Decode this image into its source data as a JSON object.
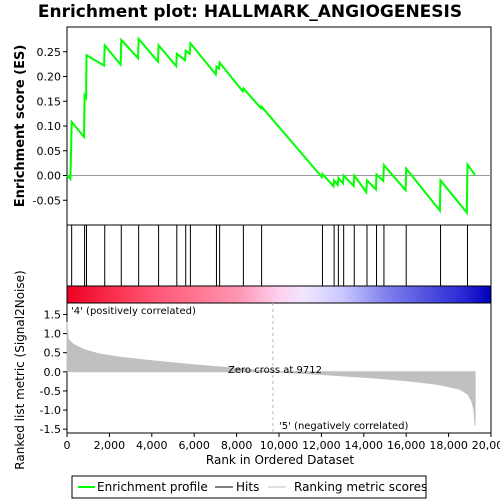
{
  "chart_data": {
    "type": "line",
    "title": "Enrichment plot: HALLMARK_ANGIOGENESIS",
    "ylabel_top": "Enrichment score (ES)",
    "ylabel_bottom": "Ranked list metric (Signal2Noise)",
    "xlabel": "Rank in Ordered Dataset",
    "xlim": [
      0,
      20000
    ],
    "ylim_top": [
      -0.1,
      0.3
    ],
    "ylim_bottom": [
      -1.6,
      1.8
    ],
    "x_ticks": [
      0,
      2000,
      4000,
      6000,
      8000,
      10000,
      12000,
      14000,
      16000,
      18000,
      20000
    ],
    "x_tick_labels": [
      "0",
      "2,000",
      "4,000",
      "6,000",
      "8,000",
      "10,000",
      "12,000",
      "14,000",
      "16,000",
      "18,000",
      "20,000"
    ],
    "y_ticks_top": [
      -0.05,
      0.0,
      0.05,
      0.1,
      0.15,
      0.2,
      0.25
    ],
    "y_tick_labels_top": [
      "-0.05",
      "0.00",
      "0.05",
      "0.10",
      "0.15",
      "0.20",
      "0.25"
    ],
    "y_ticks_bottom": [
      -1.5,
      -1.0,
      -0.5,
      0.0,
      0.5,
      1.0,
      1.5
    ],
    "y_tick_labels_bottom": [
      "-1.5",
      "-1.0",
      "-0.5",
      "0.0",
      "0.5",
      "1.0",
      "1.5"
    ],
    "hits": [
      220,
      830,
      920,
      1780,
      2560,
      3380,
      4320,
      5180,
      5600,
      5820,
      7050,
      7200,
      8320,
      9180,
      12050,
      12600,
      12800,
      13050,
      13550,
      14150,
      14600,
      14950,
      16000,
      17620,
      18890
    ],
    "es_profile": [
      [
        0,
        0.0
      ],
      [
        160,
        -0.007
      ],
      [
        220,
        0.108
      ],
      [
        800,
        0.078
      ],
      [
        830,
        0.162
      ],
      [
        900,
        0.157
      ],
      [
        920,
        0.243
      ],
      [
        1750,
        0.222
      ],
      [
        1780,
        0.263
      ],
      [
        2530,
        0.224
      ],
      [
        2560,
        0.274
      ],
      [
        3350,
        0.237
      ],
      [
        3380,
        0.276
      ],
      [
        4290,
        0.23
      ],
      [
        4320,
        0.263
      ],
      [
        5150,
        0.221
      ],
      [
        5180,
        0.246
      ],
      [
        5570,
        0.233
      ],
      [
        5600,
        0.252
      ],
      [
        5790,
        0.246
      ],
      [
        5820,
        0.267
      ],
      [
        7020,
        0.204
      ],
      [
        7050,
        0.22
      ],
      [
        7170,
        0.216
      ],
      [
        7200,
        0.228
      ],
      [
        8290,
        0.17
      ],
      [
        8320,
        0.176
      ],
      [
        9150,
        0.136
      ],
      [
        9180,
        0.139
      ],
      [
        12020,
        -0.003
      ],
      [
        12050,
        0.003
      ],
      [
        12570,
        -0.022
      ],
      [
        12600,
        -0.01
      ],
      [
        12770,
        -0.019
      ],
      [
        12800,
        -0.005
      ],
      [
        13020,
        -0.016
      ],
      [
        13050,
        0.0
      ],
      [
        13520,
        -0.021
      ],
      [
        13550,
        0.0
      ],
      [
        14120,
        -0.034
      ],
      [
        14150,
        -0.01
      ],
      [
        14570,
        -0.028
      ],
      [
        14600,
        0.002
      ],
      [
        14920,
        -0.011
      ],
      [
        14950,
        0.021
      ],
      [
        15970,
        -0.03
      ],
      [
        16000,
        0.014
      ],
      [
        17590,
        -0.071
      ],
      [
        17620,
        -0.01
      ],
      [
        18860,
        -0.075
      ],
      [
        18890,
        0.022
      ],
      [
        19250,
        0.001
      ]
    ],
    "metric_profile": [
      [
        0,
        1.3
      ],
      [
        60,
        0.85
      ],
      [
        300,
        0.72
      ],
      [
        800,
        0.58
      ],
      [
        1500,
        0.47
      ],
      [
        2500,
        0.38
      ],
      [
        4000,
        0.29
      ],
      [
        6000,
        0.18
      ],
      [
        8000,
        0.09
      ],
      [
        9712,
        0.0
      ],
      [
        12000,
        -0.07
      ],
      [
        14000,
        -0.14
      ],
      [
        16000,
        -0.23
      ],
      [
        17500,
        -0.33
      ],
      [
        18500,
        -0.45
      ],
      [
        18900,
        -0.58
      ],
      [
        19100,
        -0.78
      ],
      [
        19200,
        -1.0
      ],
      [
        19250,
        -1.4
      ]
    ],
    "heat_stops": [
      [
        0,
        "#ee0022"
      ],
      [
        0.18,
        "#ff4d6a"
      ],
      [
        0.4,
        "#ff94b0"
      ],
      [
        0.5,
        "#ffd0f0"
      ],
      [
        0.56,
        "#f0e6ff"
      ],
      [
        0.65,
        "#c9c8ff"
      ],
      [
        0.75,
        "#8282ee"
      ],
      [
        0.85,
        "#5050e0"
      ],
      [
        0.93,
        "#2b2bd5"
      ],
      [
        1,
        "#0000bb"
      ]
    ],
    "zero_cross": 9712,
    "zero_cross_label": "Zero cross at 9712",
    "pos_label": "'4' (positively correlated)",
    "neg_label": "'5' (negatively correlated)",
    "legend": [
      "Enrichment profile",
      "Hits",
      "Ranking metric scores"
    ],
    "colors": {
      "profile": "#00ff00",
      "hits": "#000000",
      "metric": "#c0c0c0",
      "pos_label": "#cc0000",
      "neg_label": "#0000cc",
      "zero_line": "#bbbbbb"
    }
  }
}
